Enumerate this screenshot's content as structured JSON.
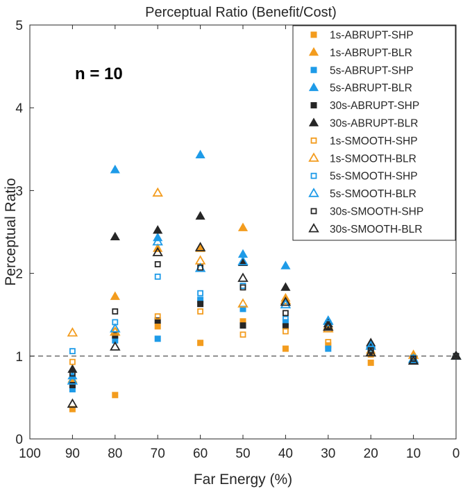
{
  "chart_data": {
    "type": "scatter",
    "title": "Perceptual Ratio (Benefit/Cost)",
    "xlabel": "Far Energy (%)",
    "ylabel": "Perceptual Ratio",
    "xlim": [
      100,
      0
    ],
    "ylim": [
      0,
      5
    ],
    "xticks": [
      100,
      90,
      80,
      70,
      60,
      50,
      40,
      30,
      20,
      10,
      0
    ],
    "yticks": [
      0,
      1,
      2,
      3,
      4,
      5
    ],
    "reference_line": 1,
    "annotation": "n = 10",
    "legend_position": "top-right",
    "series": [
      {
        "name": "1s-ABRUPT-SHP",
        "marker": "square",
        "filled": true,
        "color": "#f39c1e",
        "points": [
          [
            90,
            0.36
          ],
          [
            80,
            0.53
          ],
          [
            70,
            1.36
          ],
          [
            60,
            1.16
          ],
          [
            50,
            1.42
          ],
          [
            40,
            1.09
          ],
          [
            30,
            1.13
          ],
          [
            20,
            0.92
          ],
          [
            10,
            0.96
          ],
          [
            0,
            1.0
          ]
        ]
      },
      {
        "name": "1s-ABRUPT-BLR",
        "marker": "triangle",
        "filled": true,
        "color": "#f39c1e",
        "points": [
          [
            90,
            0.72
          ],
          [
            80,
            1.72
          ],
          [
            70,
            2.3
          ],
          [
            60,
            2.3
          ],
          [
            50,
            2.55
          ],
          [
            40,
            1.7
          ],
          [
            30,
            1.37
          ],
          [
            20,
            1.07
          ],
          [
            10,
            1.01
          ],
          [
            0,
            1.0
          ]
        ]
      },
      {
        "name": "5s-ABRUPT-SHP",
        "marker": "square",
        "filled": true,
        "color": "#1e9be8",
        "points": [
          [
            90,
            0.6
          ],
          [
            80,
            1.19
          ],
          [
            70,
            1.21
          ],
          [
            60,
            1.68
          ],
          [
            50,
            1.57
          ],
          [
            40,
            1.41
          ],
          [
            30,
            1.09
          ],
          [
            20,
            1.03
          ],
          [
            10,
            0.96
          ],
          [
            0,
            1.0
          ]
        ]
      },
      {
        "name": "5s-ABRUPT-BLR",
        "marker": "triangle",
        "filled": true,
        "color": "#1e9be8",
        "points": [
          [
            90,
            0.76
          ],
          [
            80,
            3.25
          ],
          [
            70,
            2.43
          ],
          [
            60,
            3.43
          ],
          [
            50,
            2.23
          ],
          [
            40,
            2.09
          ],
          [
            30,
            1.43
          ],
          [
            20,
            1.14
          ],
          [
            10,
            0.97
          ],
          [
            0,
            1.0
          ]
        ]
      },
      {
        "name": "30s-ABRUPT-SHP",
        "marker": "square",
        "filled": true,
        "color": "#262626",
        "points": [
          [
            90,
            0.65
          ],
          [
            80,
            1.25
          ],
          [
            70,
            1.43
          ],
          [
            60,
            1.63
          ],
          [
            50,
            1.37
          ],
          [
            40,
            1.36
          ],
          [
            30,
            1.35
          ],
          [
            20,
            1.05
          ],
          [
            10,
            0.95
          ],
          [
            0,
            1.0
          ]
        ]
      },
      {
        "name": "30s-ABRUPT-BLR",
        "marker": "triangle",
        "filled": true,
        "color": "#262626",
        "points": [
          [
            90,
            0.84
          ],
          [
            80,
            2.44
          ],
          [
            70,
            2.52
          ],
          [
            60,
            2.69
          ],
          [
            50,
            2.13
          ],
          [
            40,
            1.83
          ],
          [
            30,
            1.39
          ],
          [
            20,
            1.16
          ],
          [
            10,
            0.95
          ],
          [
            0,
            1.0
          ]
        ]
      },
      {
        "name": "1s-SMOOTH-SHP",
        "marker": "square",
        "filled": false,
        "color": "#f39c1e",
        "points": [
          [
            90,
            0.93
          ],
          [
            80,
            1.3
          ],
          [
            70,
            1.48
          ],
          [
            60,
            1.54
          ],
          [
            50,
            1.26
          ],
          [
            40,
            1.3
          ],
          [
            30,
            1.17
          ],
          [
            20,
            1.02
          ],
          [
            10,
            0.98
          ],
          [
            0,
            1.0
          ]
        ]
      },
      {
        "name": "1s-SMOOTH-BLR",
        "marker": "triangle",
        "filled": false,
        "color": "#f39c1e",
        "points": [
          [
            90,
            1.28
          ],
          [
            80,
            1.29
          ],
          [
            70,
            2.97
          ],
          [
            60,
            2.15
          ],
          [
            50,
            1.63
          ],
          [
            40,
            1.67
          ],
          [
            30,
            1.33
          ],
          [
            20,
            1.04
          ],
          [
            10,
            1.01
          ],
          [
            0,
            1.0
          ]
        ]
      },
      {
        "name": "5s-SMOOTH-SHP",
        "marker": "square",
        "filled": false,
        "color": "#1e9be8",
        "points": [
          [
            90,
            1.06
          ],
          [
            80,
            1.41
          ],
          [
            70,
            1.96
          ],
          [
            60,
            1.76
          ],
          [
            50,
            1.85
          ],
          [
            40,
            1.45
          ],
          [
            30,
            1.4
          ],
          [
            20,
            1.09
          ],
          [
            10,
            0.98
          ],
          [
            0,
            1.0
          ]
        ]
      },
      {
        "name": "5s-SMOOTH-BLR",
        "marker": "triangle",
        "filled": false,
        "color": "#1e9be8",
        "points": [
          [
            90,
            0.7
          ],
          [
            80,
            1.33
          ],
          [
            70,
            2.38
          ],
          [
            60,
            2.06
          ],
          [
            50,
            2.14
          ],
          [
            40,
            1.62
          ],
          [
            30,
            1.42
          ],
          [
            20,
            1.12
          ],
          [
            10,
            0.96
          ],
          [
            0,
            1.0
          ]
        ]
      },
      {
        "name": "30s-SMOOTH-SHP",
        "marker": "square",
        "filled": false,
        "color": "#262626",
        "points": [
          [
            90,
            0.79
          ],
          [
            80,
            1.54
          ],
          [
            70,
            2.11
          ],
          [
            60,
            2.07
          ],
          [
            50,
            1.83
          ],
          [
            40,
            1.52
          ],
          [
            30,
            1.36
          ],
          [
            20,
            1.07
          ],
          [
            10,
            0.97
          ],
          [
            0,
            1.0
          ]
        ]
      },
      {
        "name": "30s-SMOOTH-BLR",
        "marker": "triangle",
        "filled": false,
        "color": "#262626",
        "points": [
          [
            90,
            0.42
          ],
          [
            80,
            1.11
          ],
          [
            70,
            2.25
          ],
          [
            60,
            2.31
          ],
          [
            50,
            1.94
          ],
          [
            40,
            1.65
          ],
          [
            30,
            1.35
          ],
          [
            20,
            1.04
          ],
          [
            10,
            0.94
          ],
          [
            0,
            1.0
          ]
        ]
      }
    ]
  }
}
